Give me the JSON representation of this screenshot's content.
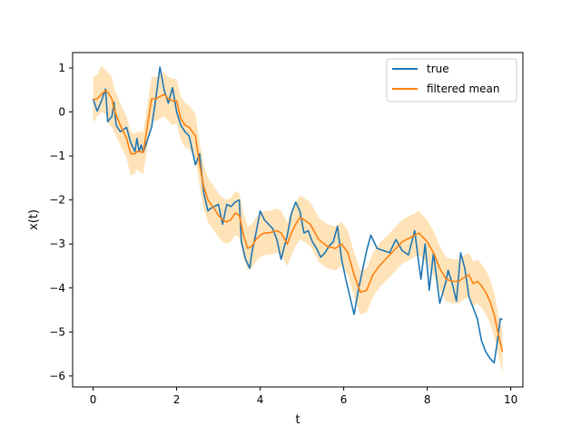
{
  "chart_data": {
    "type": "line",
    "title": "",
    "xlabel": "t",
    "ylabel": "x(t)",
    "xlim": [
      -0.49,
      10.29
    ],
    "ylim": [
      -6.25,
      1.35
    ],
    "xticks": [
      0,
      2,
      4,
      6,
      8,
      10
    ],
    "yticks": [
      1,
      0,
      -1,
      -2,
      -3,
      -4,
      -5,
      -6
    ],
    "xtick_labels": [
      "0",
      "2",
      "4",
      "6",
      "8",
      "10"
    ],
    "ytick_labels": [
      "1",
      "0",
      "−1",
      "−2",
      "−3",
      "−4",
      "−5",
      "−6"
    ],
    "grid": false,
    "legend": "top-right",
    "colors": {
      "true": "#1f77b4",
      "filtered": "#ff7f0e",
      "band": "#fdd9a0"
    },
    "series": [
      {
        "name": "true",
        "x": [
          0.0,
          0.1,
          0.2,
          0.3,
          0.35,
          0.45,
          0.5,
          0.55,
          0.65,
          0.8,
          0.9,
          1.0,
          1.05,
          1.1,
          1.15,
          1.2,
          1.4,
          1.5,
          1.6,
          1.7,
          1.8,
          1.9,
          2.0,
          2.1,
          2.2,
          2.3,
          2.45,
          2.55,
          2.65,
          2.75,
          2.8,
          2.9,
          3.0,
          3.1,
          3.2,
          3.3,
          3.4,
          3.5,
          3.55,
          3.65,
          3.75,
          3.8,
          3.9,
          4.0,
          4.1,
          4.2,
          4.3,
          4.4,
          4.5,
          4.65,
          4.75,
          4.85,
          4.95,
          5.05,
          5.15,
          5.25,
          5.35,
          5.45,
          5.55,
          5.65,
          5.75,
          5.85,
          5.95,
          6.05,
          6.15,
          6.25,
          6.35,
          6.45,
          6.55,
          6.65,
          6.8,
          6.95,
          7.1,
          7.25,
          7.4,
          7.55,
          7.7,
          7.8,
          7.85,
          7.95,
          8.05,
          8.15,
          8.3,
          8.45,
          8.5,
          8.6,
          8.7,
          8.8,
          8.9,
          9.0,
          9.1,
          9.2,
          9.3,
          9.4,
          9.5,
          9.6,
          9.65,
          9.75,
          9.8
        ],
        "values": [
          0.3,
          0.02,
          0.25,
          0.52,
          -0.22,
          -0.1,
          0.22,
          -0.3,
          -0.45,
          -0.35,
          -0.7,
          -0.9,
          -0.6,
          -0.9,
          -0.75,
          -0.92,
          -0.35,
          0.3,
          1.02,
          0.5,
          0.2,
          0.55,
          0.0,
          -0.3,
          -0.45,
          -0.55,
          -1.2,
          -0.95,
          -1.85,
          -2.25,
          -2.2,
          -2.15,
          -2.1,
          -2.55,
          -2.1,
          -2.15,
          -2.05,
          -2.0,
          -2.95,
          -3.35,
          -3.55,
          -3.2,
          -2.75,
          -2.25,
          -2.45,
          -2.55,
          -2.65,
          -2.9,
          -3.35,
          -2.8,
          -2.3,
          -2.05,
          -2.25,
          -2.75,
          -2.7,
          -2.95,
          -3.1,
          -3.3,
          -3.2,
          -3.05,
          -2.95,
          -2.6,
          -3.35,
          -3.8,
          -4.2,
          -4.6,
          -4.05,
          -3.6,
          -3.15,
          -2.8,
          -3.1,
          -3.15,
          -3.2,
          -2.9,
          -3.15,
          -3.25,
          -2.7,
          -3.45,
          -3.8,
          -3.0,
          -4.05,
          -3.2,
          -4.35,
          -3.85,
          -3.6,
          -3.9,
          -4.3,
          -3.2,
          -3.55,
          -4.2,
          -4.45,
          -4.7,
          -5.2,
          -5.45,
          -5.6,
          -5.7,
          -5.4,
          -4.7,
          -4.72
        ]
      },
      {
        "name": "filtered mean",
        "x": [
          0.0,
          0.1,
          0.2,
          0.3,
          0.35,
          0.45,
          0.5,
          0.65,
          0.8,
          0.9,
          1.0,
          1.05,
          1.1,
          1.2,
          1.4,
          1.5,
          1.6,
          1.7,
          1.8,
          1.9,
          2.0,
          2.1,
          2.2,
          2.3,
          2.45,
          2.55,
          2.65,
          2.75,
          2.9,
          3.0,
          3.1,
          3.2,
          3.3,
          3.4,
          3.5,
          3.6,
          3.7,
          3.8,
          3.9,
          4.0,
          4.1,
          4.2,
          4.4,
          4.5,
          4.65,
          4.75,
          4.85,
          4.95,
          5.05,
          5.2,
          5.4,
          5.6,
          5.8,
          5.95,
          6.1,
          6.25,
          6.4,
          6.55,
          6.7,
          6.85,
          7.0,
          7.2,
          7.4,
          7.6,
          7.8,
          8.0,
          8.15,
          8.3,
          8.45,
          8.6,
          8.75,
          8.9,
          9.0,
          9.1,
          9.2,
          9.3,
          9.4,
          9.5,
          9.6,
          9.7,
          9.8
        ],
        "values": [
          0.28,
          0.3,
          0.4,
          0.48,
          0.45,
          0.3,
          0.05,
          -0.3,
          -0.6,
          -0.95,
          -0.95,
          -0.9,
          -0.9,
          -0.92,
          0.3,
          0.3,
          0.35,
          0.4,
          0.3,
          0.25,
          0.25,
          -0.15,
          -0.3,
          -0.35,
          -0.55,
          -1.2,
          -1.7,
          -2.0,
          -2.2,
          -2.35,
          -2.45,
          -2.5,
          -2.45,
          -2.3,
          -2.35,
          -2.8,
          -3.1,
          -3.05,
          -2.9,
          -2.8,
          -2.75,
          -2.75,
          -2.7,
          -2.75,
          -3.0,
          -2.75,
          -2.55,
          -2.4,
          -2.45,
          -2.55,
          -2.9,
          -3.05,
          -3.1,
          -3.0,
          -3.2,
          -3.7,
          -4.1,
          -4.05,
          -3.7,
          -3.5,
          -3.35,
          -3.15,
          -2.95,
          -2.85,
          -2.75,
          -2.95,
          -3.2,
          -3.55,
          -3.8,
          -3.85,
          -3.85,
          -3.75,
          -3.7,
          -3.9,
          -3.85,
          -3.95,
          -4.1,
          -4.3,
          -4.6,
          -5.05,
          -5.45
        ]
      }
    ],
    "band": {
      "name": "filtered mean band",
      "x": [
        0.0,
        0.1,
        0.2,
        0.3,
        0.35,
        0.45,
        0.5,
        0.65,
        0.8,
        0.9,
        1.0,
        1.05,
        1.1,
        1.2,
        1.4,
        1.5,
        1.6,
        1.7,
        1.8,
        1.9,
        2.0,
        2.1,
        2.2,
        2.3,
        2.45,
        2.55,
        2.65,
        2.75,
        2.9,
        3.0,
        3.1,
        3.2,
        3.3,
        3.4,
        3.5,
        3.6,
        3.7,
        3.8,
        3.9,
        4.0,
        4.1,
        4.2,
        4.4,
        4.5,
        4.65,
        4.75,
        4.85,
        4.95,
        5.05,
        5.2,
        5.4,
        5.6,
        5.8,
        5.95,
        6.1,
        6.25,
        6.4,
        6.55,
        6.7,
        6.85,
        7.0,
        7.2,
        7.4,
        7.6,
        7.8,
        8.0,
        8.15,
        8.3,
        8.45,
        8.6,
        8.75,
        8.9,
        9.0,
        9.1,
        9.2,
        9.3,
        9.4,
        9.5,
        9.6,
        9.7,
        9.8
      ],
      "lower": [
        -0.25,
        -0.1,
        0.0,
        -0.05,
        -0.25,
        -0.35,
        -0.45,
        -0.75,
        -1.05,
        -1.45,
        -1.4,
        -1.3,
        -1.35,
        -1.4,
        -0.2,
        -0.2,
        -0.15,
        -0.1,
        -0.2,
        -0.3,
        -0.25,
        -0.65,
        -0.8,
        -0.85,
        -1.05,
        -1.7,
        -2.2,
        -2.5,
        -2.7,
        -2.85,
        -2.95,
        -3.0,
        -2.95,
        -2.8,
        -2.85,
        -3.3,
        -3.6,
        -3.55,
        -3.4,
        -3.3,
        -3.25,
        -3.25,
        -3.2,
        -3.25,
        -3.5,
        -3.25,
        -3.05,
        -2.9,
        -2.95,
        -3.05,
        -3.4,
        -3.55,
        -3.6,
        -3.5,
        -3.7,
        -4.2,
        -4.6,
        -4.55,
        -4.2,
        -4.0,
        -3.85,
        -3.65,
        -3.45,
        -3.35,
        -3.25,
        -3.45,
        -3.7,
        -4.05,
        -4.3,
        -4.35,
        -4.35,
        -4.25,
        -4.2,
        -4.4,
        -4.35,
        -4.45,
        -4.6,
        -4.8,
        -5.1,
        -5.5,
        -5.95
      ],
      "upper": [
        0.8,
        0.85,
        1.05,
        0.95,
        0.9,
        0.8,
        0.55,
        0.2,
        -0.1,
        -0.45,
        -0.5,
        -0.45,
        -0.45,
        -0.45,
        0.8,
        0.8,
        0.85,
        0.9,
        0.8,
        0.75,
        0.75,
        0.35,
        0.2,
        0.15,
        -0.05,
        -0.7,
        -1.2,
        -1.5,
        -1.7,
        -1.85,
        -1.95,
        -2.0,
        -1.95,
        -1.8,
        -1.85,
        -2.3,
        -2.6,
        -2.55,
        -2.4,
        -2.3,
        -2.25,
        -2.25,
        -2.2,
        -2.25,
        -2.5,
        -2.25,
        -2.05,
        -1.9,
        -1.95,
        -2.05,
        -2.4,
        -2.55,
        -2.6,
        -2.5,
        -2.7,
        -3.2,
        -3.6,
        -3.55,
        -3.2,
        -3.0,
        -2.85,
        -2.65,
        -2.45,
        -2.35,
        -2.25,
        -2.45,
        -2.7,
        -3.05,
        -3.3,
        -3.35,
        -3.35,
        -3.25,
        -3.2,
        -3.4,
        -3.35,
        -3.45,
        -3.6,
        -3.8,
        -4.1,
        -4.6,
        -5.0
      ]
    }
  }
}
